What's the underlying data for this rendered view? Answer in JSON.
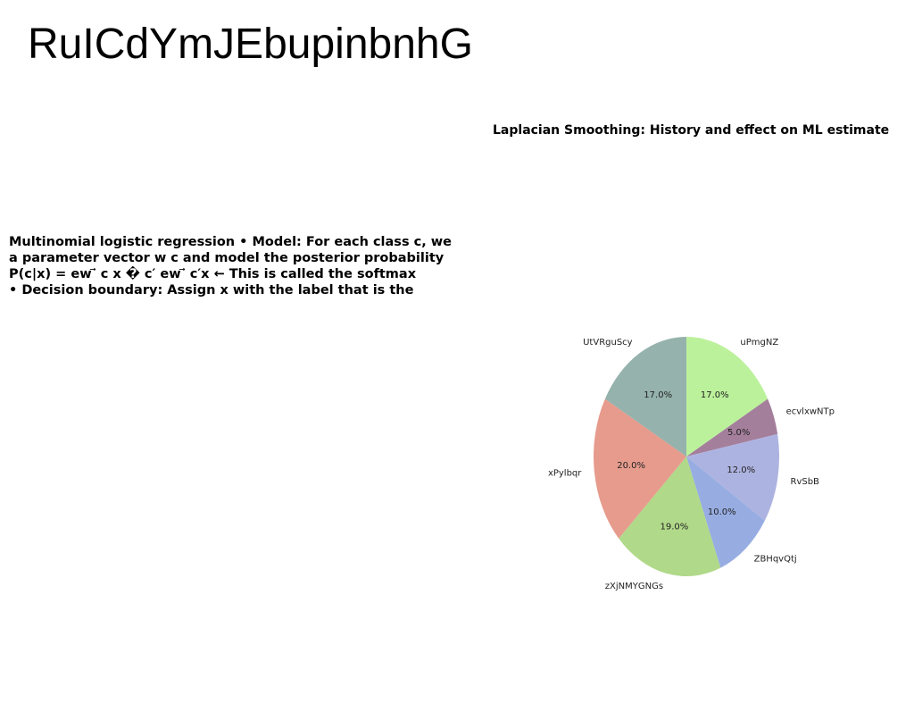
{
  "page": {
    "title": "RuICdYmJEbupinbnhG"
  },
  "body_text": {
    "lines": [
      "Multinomial logistic regression • Model: For each class c, we",
      "a parameter vector w c and model the posterior probability",
      "P(c|x) = ew ⃗ c x � c′ ew ⃗ c′x ← This is called the softmax",
      "• Decision boundary: Assign x with the label that is the"
    ]
  },
  "chart_data": {
    "type": "pie",
    "title": "Laplacian Smoothing: History and effect on ML estimate",
    "categories": [
      "uPmgNZ",
      "ecvlxwNTp",
      "RvSbB",
      "ZBHqvQtj",
      "zXjNMYGNGs",
      "xPylbqr",
      "UtVRguScy"
    ],
    "values": [
      17.0,
      5.0,
      12.0,
      10.0,
      19.0,
      20.0,
      17.0
    ],
    "labels": [
      "17.0%",
      "5.0%",
      "12.0%",
      "10.0%",
      "19.0%",
      "20.0%",
      "17.0%"
    ],
    "colors": [
      "#bbf19b",
      "#a47f9c",
      "#adb3e0",
      "#97ade2",
      "#b0d989",
      "#e69b8d",
      "#95b2ac"
    ],
    "start_angle": "12 o'clock",
    "direction": "clockwise",
    "legend": "none"
  }
}
